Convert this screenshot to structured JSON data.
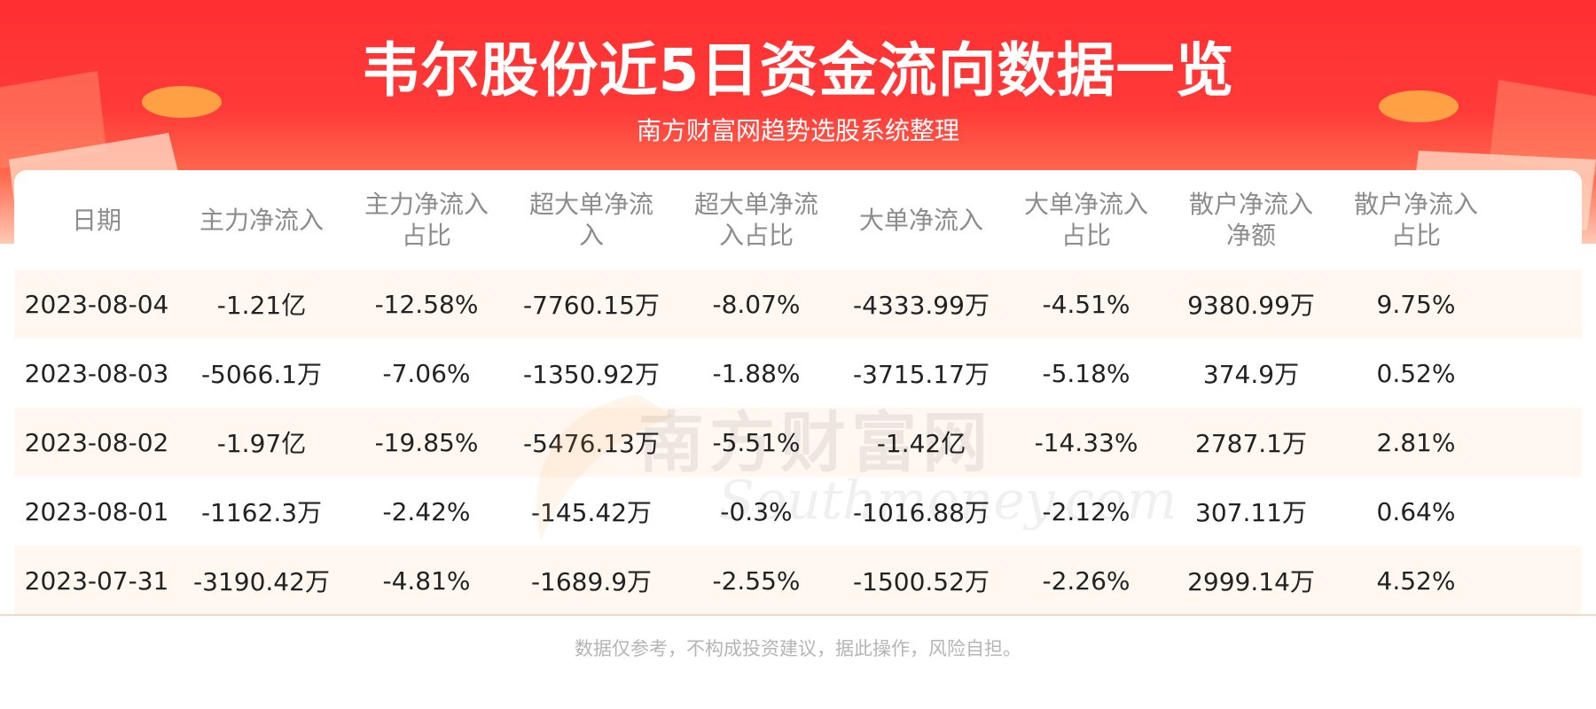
{
  "header": {
    "title": "韦尔股份近5日资金流向数据一览",
    "subtitle": "南方财富网趋势选股系统整理"
  },
  "table": {
    "columns": [
      "日期",
      "主力净流入",
      "主力净流入\n占比",
      "超大单净流\n入",
      "超大单净流\n入占比",
      "大单净流入",
      "大单净流入\n占比",
      "散户净流入\n净额",
      "散户净流入\n占比"
    ],
    "rows": [
      [
        "2023-08-04",
        "-1.21亿",
        "-12.58%",
        "-7760.15万",
        "-8.07%",
        "-4333.99万",
        "-4.51%",
        "9380.99万",
        "9.75%"
      ],
      [
        "2023-08-03",
        "-5066.1万",
        "-7.06%",
        "-1350.92万",
        "-1.88%",
        "-3715.17万",
        "-5.18%",
        "374.9万",
        "0.52%"
      ],
      [
        "2023-08-02",
        "-1.97亿",
        "-19.85%",
        "-5476.13万",
        "-5.51%",
        "-1.42亿",
        "-14.33%",
        "2787.1万",
        "2.81%"
      ],
      [
        "2023-08-01",
        "-1162.3万",
        "-2.42%",
        "-145.42万",
        "-0.3%",
        "-1016.88万",
        "-2.12%",
        "307.11万",
        "0.64%"
      ],
      [
        "2023-07-31",
        "-3190.42万",
        "-4.81%",
        "-1689.9万",
        "-2.55%",
        "-1500.52万",
        "-2.26%",
        "2999.14万",
        "4.52%"
      ]
    ]
  },
  "watermark": {
    "text_cn": "南方财富网",
    "text_en": "Southmoney.com"
  },
  "footer": {
    "disclaimer": "数据仅参考，不构成投资建议，据此操作，风险自担。"
  },
  "colors": {
    "banner_red": "#ff2f32",
    "row_alt_bg": "#fff7f0",
    "header_text": "#8c8c8c",
    "cell_text": "#222222"
  }
}
